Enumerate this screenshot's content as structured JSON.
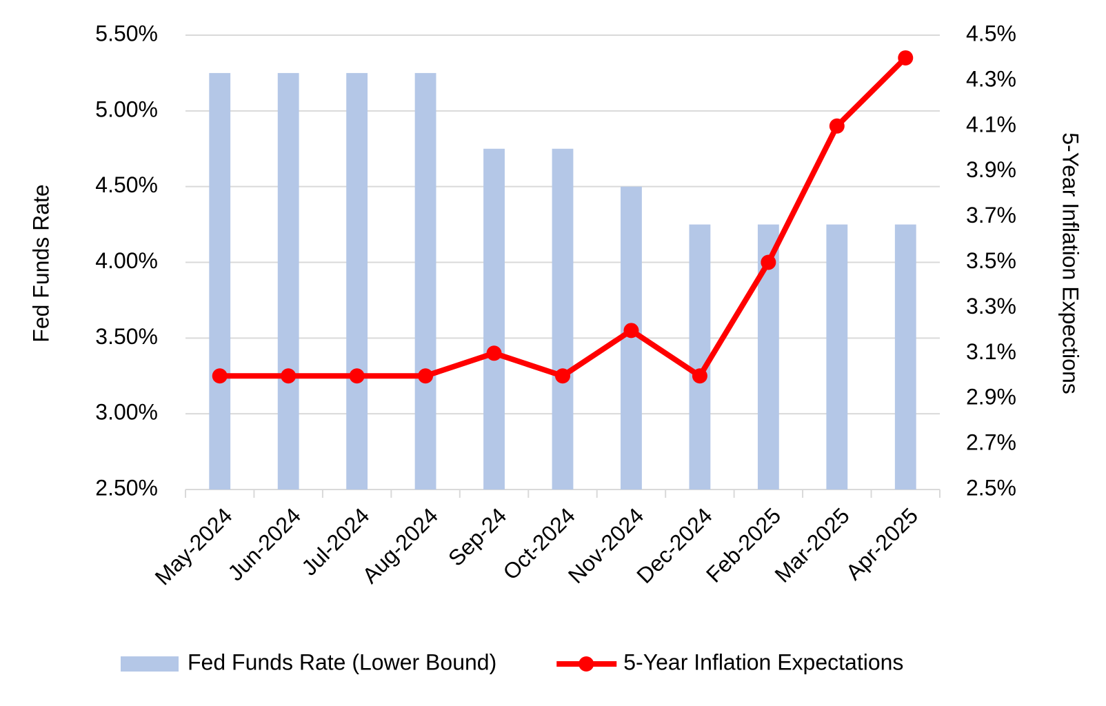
{
  "chart_data": {
    "type": "bar",
    "categories": [
      "May-2024",
      "Jun-2024",
      "Jul-2024",
      "Aug-2024",
      "Sep-24",
      "Oct-2024",
      "Nov-2024",
      "Dec-2024",
      "Feb-2025",
      "Mar-2025",
      "Apr-2025"
    ],
    "series": [
      {
        "name": "Fed Funds Rate (Lower Bound)",
        "type": "bar",
        "color": "#b4c7e7",
        "values": [
          5.25,
          5.25,
          5.25,
          5.25,
          4.75,
          4.75,
          4.5,
          4.25,
          4.25,
          4.25,
          4.25
        ]
      },
      {
        "name": "5-Year Inflation Expectations",
        "type": "line",
        "axis": "y2",
        "color": "#ff0000",
        "values": [
          3.0,
          3.0,
          3.0,
          3.0,
          3.1,
          3.0,
          3.2,
          3.0,
          3.5,
          4.1,
          4.4
        ]
      }
    ],
    "ylabel": "Fed Funds Rate",
    "y2label": "5-Year Inflation Expections",
    "ylim": [
      2.5,
      5.5
    ],
    "yticks": [
      {
        "value": 2.5,
        "label": "2.50%"
      },
      {
        "value": 3.0,
        "label": "3.00%"
      },
      {
        "value": 3.5,
        "label": "3.50%"
      },
      {
        "value": 4.0,
        "label": "4.00%"
      },
      {
        "value": 4.5,
        "label": "4.50%"
      },
      {
        "value": 5.0,
        "label": "5.00%"
      },
      {
        "value": 5.5,
        "label": "5.50%"
      }
    ],
    "y2lim": [
      2.5,
      4.5
    ],
    "y2ticks": [
      {
        "value": 2.5,
        "label": "2.5%"
      },
      {
        "value": 2.7,
        "label": "2.7%"
      },
      {
        "value": 2.9,
        "label": "2.9%"
      },
      {
        "value": 3.1,
        "label": "3.1%"
      },
      {
        "value": 3.3,
        "label": "3.3%"
      },
      {
        "value": 3.5,
        "label": "3.5%"
      },
      {
        "value": 3.7,
        "label": "3.7%"
      },
      {
        "value": 3.9,
        "label": "3.9%"
      },
      {
        "value": 4.1,
        "label": "4.1%"
      },
      {
        "value": 4.3,
        "label": "4.3%"
      },
      {
        "value": 4.5,
        "label": "4.5%"
      }
    ],
    "grid": true,
    "legend": "bottom"
  }
}
